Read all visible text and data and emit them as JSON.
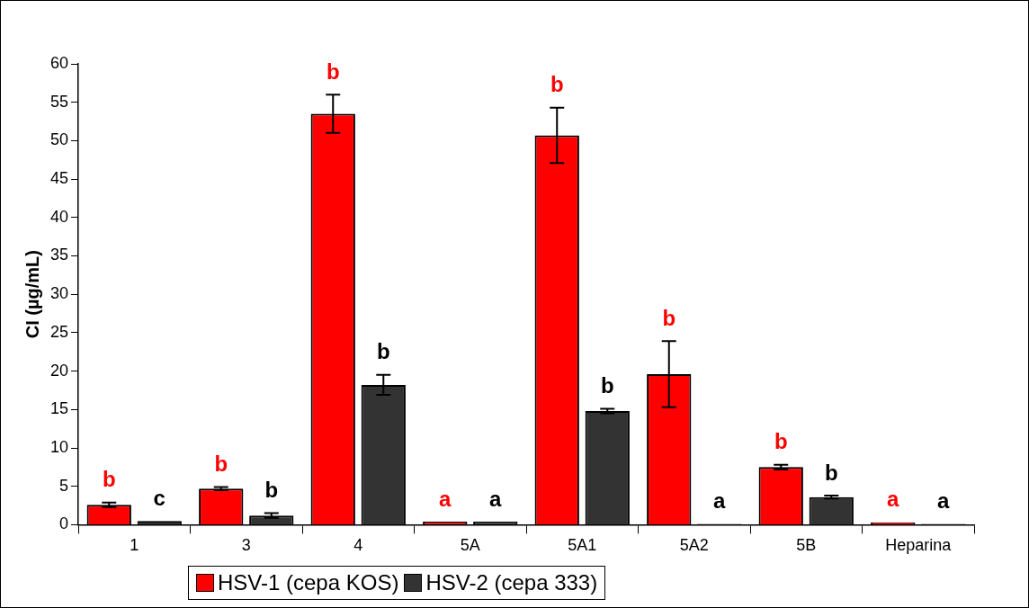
{
  "chart_data": {
    "type": "bar",
    "ylabel": "CI (µg/mL)",
    "categories": [
      "1",
      "3",
      "4",
      "5A",
      "5A1",
      "5A2",
      "5B",
      "Heparina"
    ],
    "series": [
      {
        "name": "HSV-1 (cepa KOS)",
        "color": "#ff0000",
        "values": [
          2.6,
          4.7,
          53.5,
          0.4,
          50.7,
          19.6,
          7.5,
          0.3
        ],
        "errors": [
          0.3,
          0.2,
          2.5,
          null,
          3.6,
          4.3,
          0.3,
          null
        ],
        "value_labels": [
          "b",
          "b",
          "b",
          "a",
          "b",
          "b",
          "b",
          "a"
        ]
      },
      {
        "name": "HSV-2 (cepa 333)",
        "color": "#333333",
        "values": [
          0.5,
          1.2,
          18.2,
          0.4,
          14.8,
          0.1,
          3.6,
          0.1
        ],
        "errors": [
          null,
          0.3,
          1.3,
          null,
          0.3,
          null,
          0.2,
          null
        ],
        "value_labels": [
          "c",
          "b",
          "b",
          "a",
          "b",
          "a",
          "b",
          "a"
        ]
      }
    ],
    "ylim": [
      0,
      60
    ],
    "yticks": [
      0,
      5,
      10,
      15,
      20,
      25,
      30,
      35,
      40,
      45,
      50,
      55,
      60
    ],
    "grid": false,
    "legend": "bottom"
  }
}
